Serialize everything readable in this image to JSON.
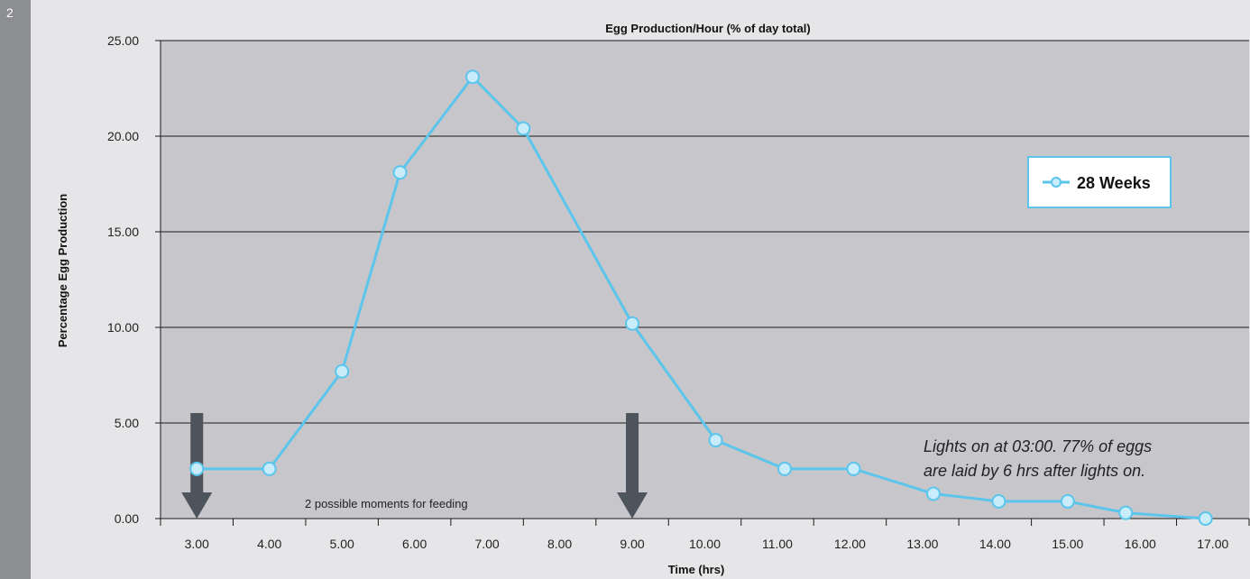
{
  "page": {
    "number": "2"
  },
  "chart_data": {
    "type": "line",
    "title": "Egg Production/Hour (% of day total)",
    "xlabel": "Time (hrs)",
    "ylabel": "Percentage Egg Production",
    "categories": [
      "3.00",
      "4.00",
      "5.00",
      "6.00",
      "7.00",
      "8.00",
      "9.00",
      "10.00",
      "11.00",
      "12.00",
      "13.00",
      "14.00",
      "15.00",
      "16.00",
      "17.00"
    ],
    "x": [
      3,
      4,
      5,
      5.8,
      6.8,
      7.5,
      9,
      10.15,
      11.1,
      12.05,
      13.15,
      14.05,
      15,
      15.8,
      16.9
    ],
    "series": [
      {
        "name": "28 Weeks",
        "values": [
          2.6,
          2.6,
          7.7,
          18.1,
          23.1,
          20.4,
          10.2,
          4.1,
          2.6,
          2.6,
          1.3,
          0.9,
          0.9,
          0.3,
          0.0
        ],
        "color": "#5bc5ec"
      }
    ],
    "xlim": [
      2.5,
      17.5
    ],
    "ylim": [
      0,
      25
    ],
    "yticks": [
      "0.00",
      "5.00",
      "10.00",
      "15.00",
      "20.00",
      "25.00"
    ],
    "grid": true,
    "legend": "top-right",
    "plot_bg": "#c7c6cb",
    "annotations": {
      "lights_line1": "Lights on at 03:00.  77% of eggs",
      "lights_line2": "are laid by 6 hrs after lights on.",
      "feeding": "2 possible moments for feeding"
    },
    "feeding_arrows_x": [
      3,
      9
    ],
    "arrow_color": "#4e545c"
  }
}
